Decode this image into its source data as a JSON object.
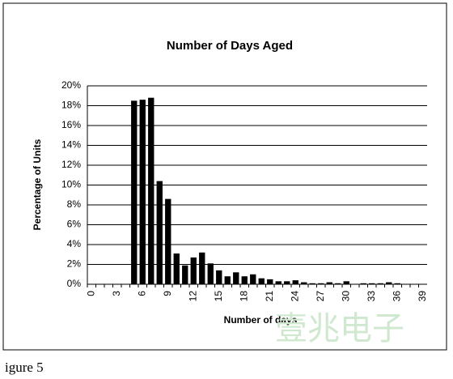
{
  "chart_data": {
    "type": "bar",
    "title": "Number of Days Aged",
    "x_label": "Number of days",
    "y_label": "Percentage of Units",
    "categories": [
      "0",
      null,
      null,
      "3",
      null,
      null,
      "6",
      null,
      null,
      "9",
      null,
      null,
      "12",
      null,
      null,
      "15",
      null,
      null,
      "18",
      null,
      null,
      "21",
      null,
      null,
      "24",
      null,
      null,
      "27",
      null,
      null,
      "30",
      null,
      null,
      "33",
      null,
      null,
      "36",
      null,
      null,
      "39"
    ],
    "values": [
      0,
      0,
      0,
      0,
      0,
      18.5,
      18.6,
      18.8,
      10.4,
      8.6,
      3.1,
      1.9,
      2.7,
      3.2,
      2.1,
      1.4,
      0.8,
      1.2,
      0.8,
      1.0,
      0.6,
      0.5,
      0.3,
      0.3,
      0.4,
      0.2,
      0.1,
      0.1,
      0.2,
      0.1,
      0.3,
      0,
      0.1,
      0.1,
      0.1,
      0.2,
      0.1,
      0,
      0,
      0
    ],
    "color": "#000000",
    "ylim": [
      0,
      20
    ],
    "yticks": [
      {
        "value": 0,
        "label": "0%"
      },
      {
        "value": 2,
        "label": "2%"
      },
      {
        "value": 4,
        "label": "4%"
      },
      {
        "value": 6,
        "label": "6%"
      },
      {
        "value": 8,
        "label": "8%"
      },
      {
        "value": 10,
        "label": "10%"
      },
      {
        "value": 12,
        "label": "12%"
      },
      {
        "value": 14,
        "label": "14%"
      },
      {
        "value": 16,
        "label": "16%"
      },
      {
        "value": 18,
        "label": "18%"
      },
      {
        "value": 20,
        "label": "20%"
      }
    ],
    "grid": true
  },
  "caption": "igure 5",
  "watermark": "壹兆电子"
}
